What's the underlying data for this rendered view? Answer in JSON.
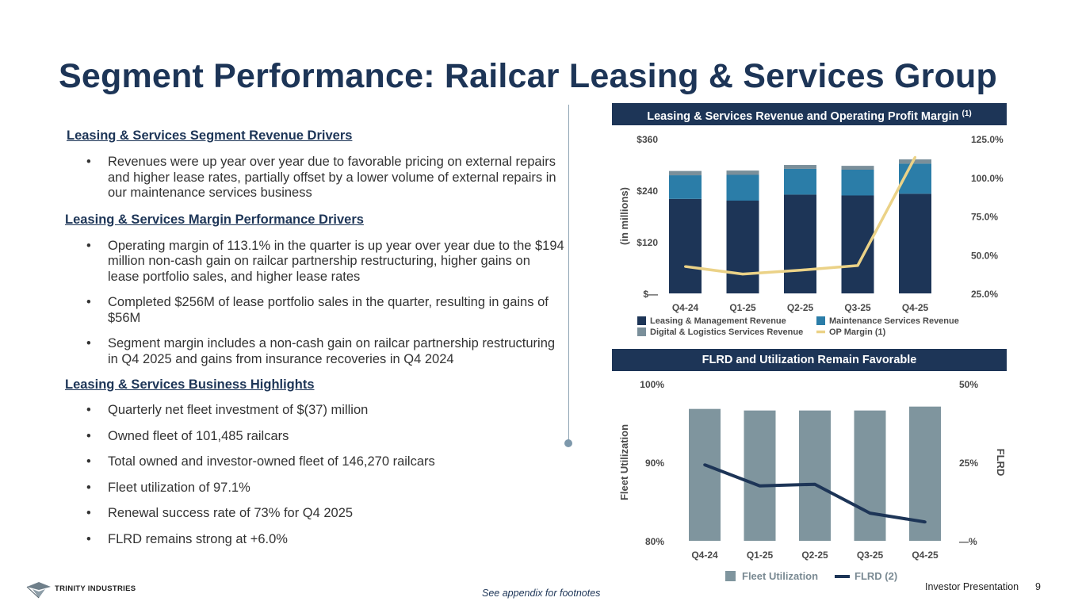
{
  "page": {
    "title": "Segment Performance: Railcar Leasing & Services Group",
    "footnote": "See appendix for footnotes",
    "footer_label": "Investor Presentation",
    "page_number": "9",
    "logo_text": "TRINITY INDUSTRIES",
    "logo_icon": "trinity-logo-icon"
  },
  "left": {
    "sections": [
      {
        "heading": "Leasing & Services Segment Revenue Drivers",
        "bullets": [
          "Revenues were up year over year due to favorable pricing on external repairs and higher lease rates, partially offset by a lower volume of external repairs in our maintenance services business"
        ]
      },
      {
        "heading": "Leasing & Services Margin Performance Drivers",
        "bullets": [
          "Operating margin of 113.1% in the quarter is up year over year due to the $194 million non-cash gain on railcar partnership restructuring, higher gains on lease portfolio sales, and higher lease rates",
          "Completed $256M of lease portfolio sales in the quarter, resulting in gains of $56M",
          "Segment margin includes a non-cash gain on railcar partnership restructuring in Q4 2025 and gains from insurance recoveries in Q4 2024"
        ]
      },
      {
        "heading": "Leasing & Services Business Highlights",
        "bullets": [
          "Quarterly net fleet investment of $(37) million",
          "Owned fleet of 101,485 railcars",
          "Total owned and investor-owned fleet of 146,270 railcars",
          "Fleet utilization of 97.1%",
          "Renewal success rate of 73% for Q4 2025",
          "FLRD remains strong at +6.0%"
        ]
      }
    ]
  },
  "chart_data": [
    {
      "type": "bar",
      "stacked": true,
      "title": "Leasing & Services Revenue and Operating Profit Margin",
      "title_sup": "(1)",
      "ylabel": "(in millions)",
      "categories": [
        "Q4-24",
        "Q1-25",
        "Q2-25",
        "Q3-25",
        "Q4-25"
      ],
      "ylim": [
        0,
        360
      ],
      "yticks": [
        0,
        120,
        240,
        360
      ],
      "ytick_labels": [
        "$—",
        "$120",
        "$240",
        "$360"
      ],
      "y2lim": [
        25,
        125
      ],
      "y2ticks": [
        25,
        50,
        75,
        100,
        125
      ],
      "y2tick_labels": [
        "25.0%",
        "50.0%",
        "75.0%",
        "100.0%",
        "125.0%"
      ],
      "series": [
        {
          "name": "Leasing & Management Revenue",
          "values": [
            220,
            216,
            230,
            228,
            232
          ],
          "color": "#1d3557"
        },
        {
          "name": "Maintenance Services Revenue",
          "values": [
            55,
            60,
            60,
            60,
            70
          ],
          "color": "#2b7da8"
        },
        {
          "name": "Digital & Logistics Services Revenue",
          "values": [
            10,
            10,
            9,
            9,
            10
          ],
          "color": "#7a8f9a"
        },
        {
          "name": "OP Margin (1)",
          "values": [
            42.4,
            37.5,
            40.0,
            43.0,
            113.1
          ],
          "axis": "right",
          "kind": "line",
          "color": "#ebd287"
        }
      ],
      "legend_position": "bottom",
      "grid": false
    },
    {
      "type": "bar",
      "title": "FLRD and Utilization Remain Favorable",
      "ylabel": "Fleet Utilization",
      "y2label": "FLRD",
      "categories": [
        "Q4-24",
        "Q1-25",
        "Q2-25",
        "Q3-25",
        "Q4-25"
      ],
      "ylim": [
        80,
        100
      ],
      "yticks": [
        80,
        90,
        100
      ],
      "ytick_labels": [
        "80%",
        "90%",
        "100%"
      ],
      "y2lim": [
        0,
        50
      ],
      "y2ticks": [
        0,
        25,
        50
      ],
      "y2tick_labels": [
        "—%",
        "25%",
        "50%"
      ],
      "series": [
        {
          "name": "Fleet Utilization",
          "values": [
            96.8,
            96.6,
            96.6,
            96.6,
            97.1
          ],
          "color": "#7f959e"
        },
        {
          "name": "FLRD (2)",
          "values": [
            24.2,
            17.5,
            18.0,
            8.8,
            6.0
          ],
          "axis": "right",
          "kind": "line",
          "color": "#1d3557"
        }
      ],
      "legend_position": "bottom",
      "grid": false
    }
  ]
}
